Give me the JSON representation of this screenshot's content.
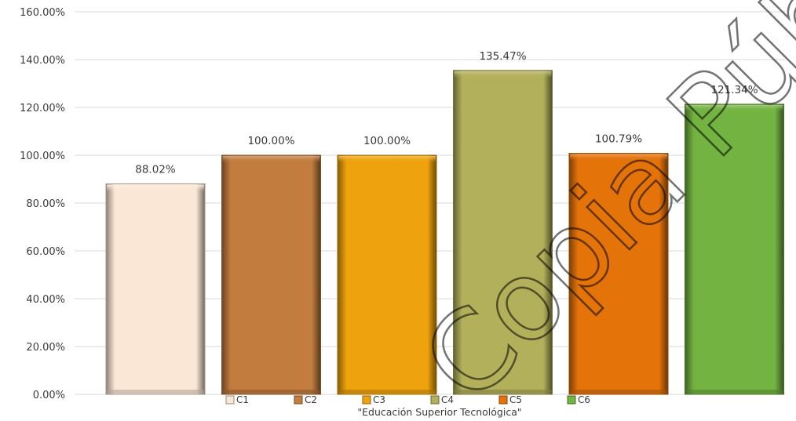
{
  "chart_data": {
    "type": "bar",
    "categories": [
      "C1",
      "C2",
      "C3",
      "C4",
      "C5",
      "C6"
    ],
    "values": [
      88.02,
      100.0,
      100.0,
      135.47,
      100.79,
      121.34
    ],
    "data_labels": [
      "88.02%",
      "100.00%",
      "100.00%",
      "135.47%",
      "100.79%",
      "121.34%"
    ],
    "colors": [
      "#fbe7d6",
      "#c27c3e",
      "#eea20d",
      "#b2b05a",
      "#e4730a",
      "#72b342"
    ],
    "xlabel": "\"Educación Superior Tecnológica\"",
    "ylim": [
      0,
      160
    ],
    "yticks": [
      0,
      20,
      40,
      60,
      80,
      100,
      120,
      140,
      160
    ],
    "ytick_labels": [
      "0.00%",
      "20.00%",
      "40.00%",
      "60.00%",
      "80.00%",
      "100.00%",
      "120.00%",
      "140.00%",
      "160.00%"
    ],
    "grid": true,
    "legend": {
      "position": "bottom",
      "entries": [
        "C1",
        "C2",
        "C3",
        "C4",
        "C5",
        "C6"
      ]
    }
  },
  "watermark": {
    "text": "Copia Pública",
    "color": "#000000"
  }
}
